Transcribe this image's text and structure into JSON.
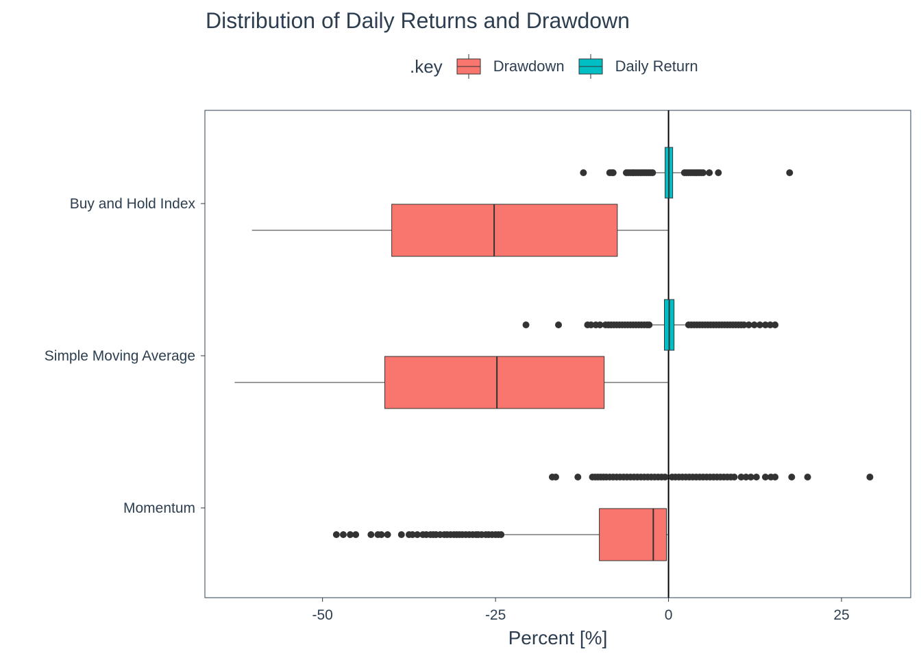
{
  "chart_data": {
    "type": "boxplot",
    "title": "Distribution of Daily Returns and Drawdown",
    "xlabel": "Percent [%]",
    "ylabel": "",
    "xlim": [
      -67,
      35
    ],
    "x_ticks": [
      "-50",
      "-25",
      "0",
      "25"
    ],
    "x_tick_values": [
      -50,
      -25,
      0,
      25
    ],
    "categories": [
      "Buy and Hold Index",
      "Simple Moving Average",
      "Momentum"
    ],
    "legend": {
      "title": ".key",
      "position": "top",
      "entries": [
        {
          "name": "Drawdown",
          "color": "#F8766D"
        },
        {
          "name": "Daily Return",
          "color": "#00BFC4"
        }
      ]
    },
    "reference_line": 0,
    "grid": false,
    "series": [
      {
        "name": "Drawdown",
        "color": "#F8766D",
        "boxes": [
          {
            "category": "Buy and Hold Index",
            "whisker_low": -60.2,
            "q1": -40.0,
            "median": -25.2,
            "q3": -7.4,
            "whisker_high": 0,
            "outliers": []
          },
          {
            "category": "Simple Moving Average",
            "whisker_low": -62.7,
            "q1": -41.0,
            "median": -24.8,
            "q3": -9.3,
            "whisker_high": 0,
            "outliers": []
          },
          {
            "category": "Momentum",
            "whisker_low": -23.7,
            "q1": -10.0,
            "median": -2.2,
            "q3": -0.3,
            "whisker_high": 0,
            "outliers": [
              -48,
              -47,
              -46,
              -45.2,
              -43,
              -42,
              -41.5,
              -40.6,
              -38.6,
              -37.5,
              -37,
              -36.3,
              -35.5,
              -35,
              -34.4,
              -34,
              -33.6,
              -33,
              -32.4,
              -32,
              -31.5,
              -31,
              -30.6,
              -30.2,
              -29.8,
              -29.3,
              -28.8,
              -28.3,
              -27.8,
              -27.5,
              -27,
              -26.4,
              -26,
              -25.5,
              -25,
              -24.6,
              -24.2
            ]
          }
        ]
      },
      {
        "name": "Daily Return",
        "color": "#00BFC4",
        "boxes": [
          {
            "category": "Buy and Hold Index",
            "whisker_low": -2.0,
            "q1": -0.5,
            "median": 0.05,
            "q3": 0.6,
            "whisker_high": 2.1,
            "outliers": [
              -12.3,
              -8.5,
              -8.2,
              -8.0,
              -6.1,
              -5.8,
              -5.5,
              -5.2,
              -5.0,
              -4.7,
              -4.4,
              -4.1,
              -3.8,
              -3.5,
              -3.2,
              -2.9,
              -2.6,
              -2.3,
              2.3,
              2.6,
              2.9,
              3.2,
              3.5,
              3.8,
              4.1,
              4.4,
              4.7,
              5.0,
              5.9,
              7.2,
              17.5
            ]
          },
          {
            "category": "Simple Moving Average",
            "whisker_low": -2.5,
            "q1": -0.6,
            "median": 0.1,
            "q3": 0.8,
            "whisker_high": 2.7,
            "outliers": [
              -20.6,
              -15.9,
              -11.7,
              -11.2,
              -10.5,
              -9.9,
              -9.1,
              -8.7,
              -8.3,
              -7.9,
              -7.5,
              -7.1,
              -6.7,
              -6.3,
              -5.9,
              -5.5,
              -5.1,
              -4.7,
              -4.3,
              -3.9,
              -3.5,
              -3.1,
              -2.8,
              2.9,
              3.3,
              3.7,
              4.1,
              4.5,
              4.9,
              5.3,
              5.7,
              6.1,
              6.5,
              6.9,
              7.3,
              7.7,
              8.1,
              8.5,
              8.9,
              9.3,
              9.7,
              10.1,
              10.5,
              10.9,
              11.6,
              12.4,
              13.2,
              14.0,
              14.7,
              15.4
            ]
          },
          {
            "category": "Momentum",
            "whisker_low": 0,
            "q1": 0,
            "median": 0,
            "q3": 0,
            "whisker_high": 0,
            "outliers": [
              -16.8,
              -16.3,
              -13.1,
              -11.0,
              -10.6,
              -10.2,
              -9.8,
              -9.4,
              -9.0,
              -8.5,
              -8.0,
              -7.5,
              -7.0,
              -6.5,
              -6.0,
              -5.5,
              -5.0,
              -4.5,
              -4.0,
              -3.5,
              -3.0,
              -2.5,
              -2.0,
              -1.5,
              -1.0,
              -0.5,
              0.5,
              1.0,
              1.5,
              2.0,
              2.5,
              3.0,
              3.5,
              4.0,
              4.5,
              5.0,
              5.5,
              6.0,
              6.5,
              7.0,
              7.5,
              8.0,
              8.5,
              9.0,
              9.5,
              10.5,
              11.2,
              11.9,
              12.7,
              14.0,
              14.8,
              15.4,
              17.8,
              20.1,
              29.1
            ]
          }
        ]
      }
    ]
  }
}
